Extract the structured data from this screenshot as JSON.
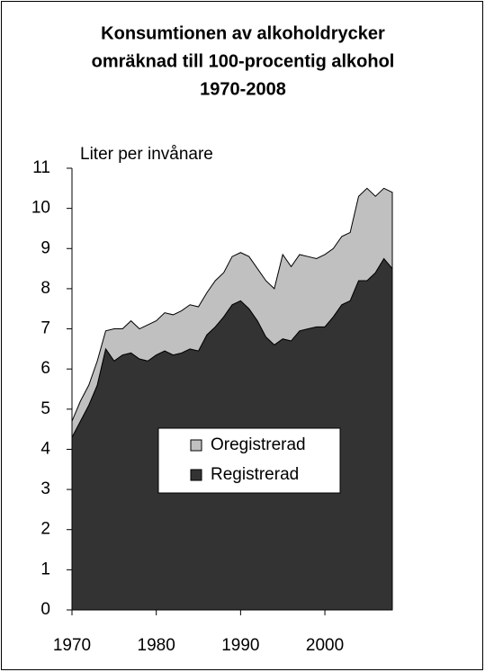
{
  "chart_data": {
    "type": "area",
    "title": [
      "Konsumtionen av alkoholdrycker",
      "omräknad till 100-procentig alkohol",
      "1970-2008"
    ],
    "y_label": "Liter per invånare",
    "x": [
      1970,
      1971,
      1972,
      1973,
      1974,
      1975,
      1976,
      1977,
      1978,
      1979,
      1980,
      1981,
      1982,
      1983,
      1984,
      1985,
      1986,
      1987,
      1988,
      1989,
      1990,
      1991,
      1992,
      1993,
      1994,
      1995,
      1996,
      1997,
      1998,
      1999,
      2000,
      2001,
      2002,
      2003,
      2004,
      2005,
      2006,
      2007,
      2008
    ],
    "series": [
      {
        "name": "Registrerad",
        "color": "#333333",
        "values": [
          4.3,
          4.7,
          5.1,
          5.6,
          6.5,
          6.2,
          6.35,
          6.4,
          6.25,
          6.2,
          6.35,
          6.45,
          6.35,
          6.4,
          6.5,
          6.45,
          6.85,
          7.05,
          7.3,
          7.6,
          7.7,
          7.5,
          7.2,
          6.8,
          6.6,
          6.75,
          6.7,
          6.95,
          7.0,
          7.05,
          7.05,
          7.3,
          7.6,
          7.7,
          8.2,
          8.2,
          8.4,
          8.75,
          8.5
        ]
      },
      {
        "name": "Oregistrerad",
        "color": "#c0c0c0",
        "values": [
          0.4,
          0.5,
          0.5,
          0.6,
          0.45,
          0.8,
          0.65,
          0.8,
          0.75,
          0.9,
          0.85,
          0.95,
          1.0,
          1.05,
          1.1,
          1.1,
          1.05,
          1.15,
          1.1,
          1.2,
          1.2,
          1.3,
          1.3,
          1.4,
          1.4,
          2.1,
          1.85,
          1.9,
          1.8,
          1.7,
          1.8,
          1.7,
          1.7,
          1.7,
          2.1,
          2.3,
          1.9,
          1.75,
          1.9
        ]
      }
    ],
    "stacked": true,
    "xlim": [
      1970,
      2008
    ],
    "xticks": [
      1970,
      1980,
      1990,
      2000
    ],
    "ylim": [
      0,
      11
    ],
    "yticks": [
      0,
      1,
      2,
      3,
      4,
      5,
      6,
      7,
      8,
      9,
      10,
      11
    ],
    "legend": "center"
  }
}
